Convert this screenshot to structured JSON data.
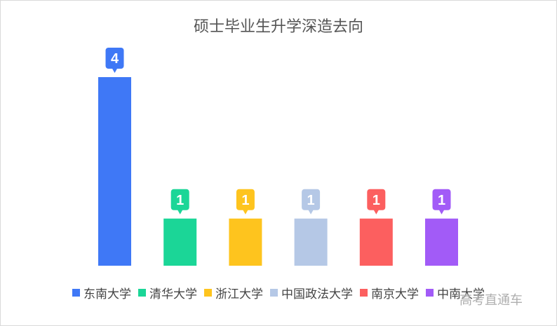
{
  "chart_data": {
    "type": "bar",
    "title": "硕士毕业生升学深造去向",
    "categories": [
      "东南大学",
      "清华大学",
      "浙江大学",
      "中国政法大学",
      "南京大学",
      "中南大学"
    ],
    "values": [
      4,
      1,
      1,
      1,
      1,
      1
    ],
    "colors": [
      "#3f78f6",
      "#1bd697",
      "#fec41e",
      "#b5c8e6",
      "#fc5f5f",
      "#a25bf7"
    ],
    "ylim": [
      0,
      4
    ],
    "grid": false,
    "legend_position": "bottom"
  },
  "watermark": "高考直通车"
}
